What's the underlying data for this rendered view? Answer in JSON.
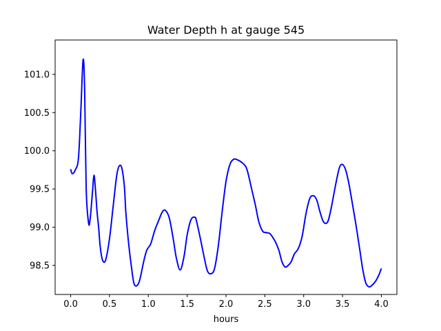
{
  "chart_data": {
    "type": "line",
    "title": "Water Depth h at gauge 545",
    "xlabel": "hours",
    "ylabel": "",
    "xlim": [
      -0.2,
      4.2
    ],
    "ylim": [
      98.12,
      101.45
    ],
    "xticks": [
      0.0,
      0.5,
      1.0,
      1.5,
      2.0,
      2.5,
      3.0,
      3.5,
      4.0
    ],
    "xtick_labels": [
      "0.0",
      "0.5",
      "1.0",
      "1.5",
      "2.0",
      "2.5",
      "3.0",
      "3.5",
      "4.0"
    ],
    "yticks": [
      98.5,
      99.0,
      99.5,
      100.0,
      100.5,
      101.0
    ],
    "ytick_labels": [
      "98.5",
      "99.0",
      "99.5",
      "100.0",
      "100.5",
      "101.0"
    ],
    "grid": false,
    "line_color": "#0000ff",
    "series": [
      {
        "x": [
          0.0,
          0.02,
          0.06,
          0.1,
          0.13,
          0.16,
          0.18,
          0.2,
          0.23,
          0.25,
          0.28,
          0.3,
          0.32,
          0.34,
          0.36,
          0.38,
          0.41,
          0.45,
          0.5,
          0.55,
          0.6,
          0.65,
          0.69,
          0.71,
          0.74,
          0.78,
          0.82,
          0.88,
          0.94,
          0.98,
          1.03,
          1.08,
          1.13,
          1.18,
          1.22,
          1.27,
          1.32,
          1.36,
          1.41,
          1.46,
          1.5,
          1.55,
          1.6,
          1.62,
          1.67,
          1.72,
          1.76,
          1.8,
          1.85,
          1.9,
          1.95,
          2.0,
          2.05,
          2.1,
          2.15,
          2.2,
          2.25,
          2.28,
          2.33,
          2.38,
          2.42,
          2.47,
          2.51,
          2.56,
          2.6,
          2.64,
          2.68,
          2.72,
          2.76,
          2.8,
          2.84,
          2.88,
          2.93,
          2.98,
          3.03,
          3.08,
          3.13,
          3.17,
          3.21,
          3.25,
          3.29,
          3.32,
          3.36,
          3.41,
          3.46,
          3.5,
          3.54,
          3.58,
          3.62,
          3.67,
          3.72,
          3.76,
          3.8,
          3.84,
          3.88,
          3.93,
          3.97,
          4.0
        ],
        "y": [
          99.76,
          99.7,
          99.75,
          99.9,
          100.5,
          101.19,
          100.8,
          99.5,
          99.06,
          99.1,
          99.45,
          99.68,
          99.48,
          99.2,
          99.0,
          98.75,
          98.57,
          98.57,
          98.85,
          99.3,
          99.72,
          99.8,
          99.55,
          99.2,
          98.85,
          98.5,
          98.25,
          98.28,
          98.55,
          98.7,
          98.78,
          98.95,
          99.08,
          99.2,
          99.22,
          99.12,
          98.85,
          98.6,
          98.44,
          98.62,
          98.9,
          99.1,
          99.13,
          99.08,
          98.85,
          98.6,
          98.43,
          98.39,
          98.45,
          98.75,
          99.2,
          99.6,
          99.82,
          99.89,
          99.88,
          99.85,
          99.8,
          99.72,
          99.5,
          99.28,
          99.08,
          98.95,
          98.93,
          98.92,
          98.87,
          98.8,
          98.7,
          98.55,
          98.48,
          98.5,
          98.55,
          98.65,
          98.72,
          98.88,
          99.18,
          99.38,
          99.41,
          99.35,
          99.2,
          99.08,
          99.05,
          99.1,
          99.28,
          99.55,
          99.78,
          99.82,
          99.75,
          99.58,
          99.35,
          99.05,
          98.72,
          98.45,
          98.27,
          98.22,
          98.24,
          98.3,
          98.38,
          98.46
        ]
      }
    ]
  }
}
